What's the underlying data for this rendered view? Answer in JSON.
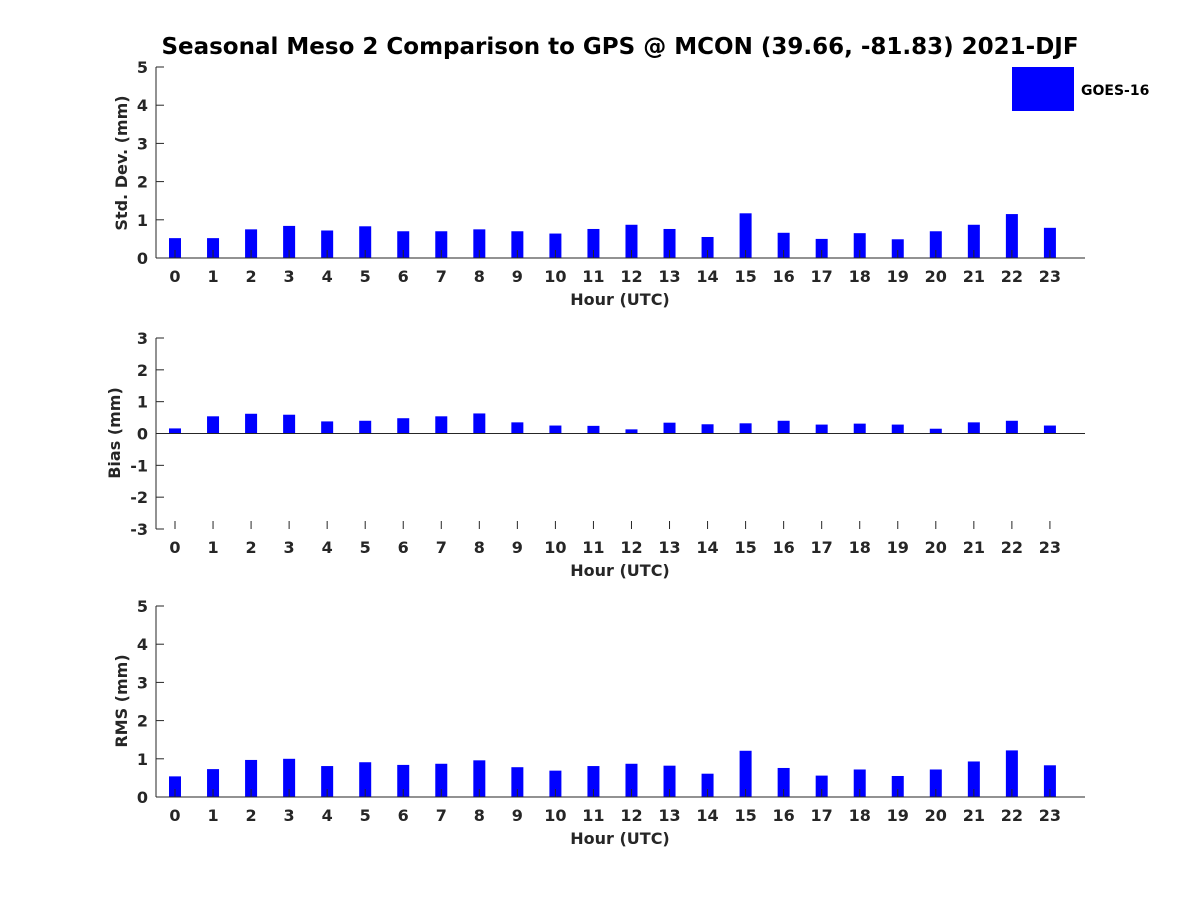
{
  "title": "Seasonal Meso 2 Comparison to GPS @ MCON (39.66, -81.83) 2021-DJF",
  "legend": {
    "label": "GOES-16",
    "color": "#0000ff",
    "placement": "top-right"
  },
  "chart_data": [
    {
      "type": "bar",
      "name": "std-dev",
      "xlabel": "Hour (UTC)",
      "ylabel": "Std. Dev. (mm)",
      "ylim": [
        0,
        5
      ],
      "yticks": [
        0,
        1,
        2,
        3,
        4,
        5
      ],
      "categories": [
        "0",
        "1",
        "2",
        "3",
        "4",
        "5",
        "6",
        "7",
        "8",
        "9",
        "10",
        "11",
        "12",
        "13",
        "14",
        "15",
        "16",
        "17",
        "18",
        "19",
        "20",
        "21",
        "22",
        "23"
      ],
      "series": [
        {
          "name": "GOES-16",
          "color": "#0000ff",
          "values": [
            0.52,
            0.52,
            0.75,
            0.84,
            0.72,
            0.83,
            0.7,
            0.7,
            0.75,
            0.7,
            0.64,
            0.76,
            0.87,
            0.76,
            0.55,
            1.17,
            0.66,
            0.5,
            0.65,
            0.49,
            0.7,
            0.87,
            1.15,
            0.79
          ]
        }
      ],
      "grid": false
    },
    {
      "type": "bar",
      "name": "bias",
      "xlabel": "Hour (UTC)",
      "ylabel": "Bias (mm)",
      "ylim": [
        -3,
        3
      ],
      "yticks": [
        -3,
        -2,
        -1,
        0,
        1,
        2,
        3
      ],
      "categories": [
        "0",
        "1",
        "2",
        "3",
        "4",
        "5",
        "6",
        "7",
        "8",
        "9",
        "10",
        "11",
        "12",
        "13",
        "14",
        "15",
        "16",
        "17",
        "18",
        "19",
        "20",
        "21",
        "22",
        "23"
      ],
      "series": [
        {
          "name": "GOES-16",
          "color": "#0000ff",
          "values": [
            0.16,
            0.54,
            0.62,
            0.59,
            0.38,
            0.4,
            0.48,
            0.54,
            0.63,
            0.35,
            0.25,
            0.24,
            0.13,
            0.34,
            0.29,
            0.32,
            0.4,
            0.28,
            0.31,
            0.28,
            0.15,
            0.35,
            0.4,
            0.25
          ]
        }
      ],
      "grid": false
    },
    {
      "type": "bar",
      "name": "rms",
      "xlabel": "Hour (UTC)",
      "ylabel": "RMS (mm)",
      "ylim": [
        0,
        5
      ],
      "yticks": [
        0,
        1,
        2,
        3,
        4,
        5
      ],
      "categories": [
        "0",
        "1",
        "2",
        "3",
        "4",
        "5",
        "6",
        "7",
        "8",
        "9",
        "10",
        "11",
        "12",
        "13",
        "14",
        "15",
        "16",
        "17",
        "18",
        "19",
        "20",
        "21",
        "22",
        "23"
      ],
      "series": [
        {
          "name": "GOES-16",
          "color": "#0000ff",
          "values": [
            0.54,
            0.73,
            0.97,
            1.0,
            0.81,
            0.91,
            0.84,
            0.87,
            0.96,
            0.78,
            0.69,
            0.81,
            0.87,
            0.82,
            0.61,
            1.21,
            0.76,
            0.56,
            0.72,
            0.55,
            0.72,
            0.93,
            1.22,
            0.83
          ]
        }
      ],
      "grid": false
    }
  ]
}
